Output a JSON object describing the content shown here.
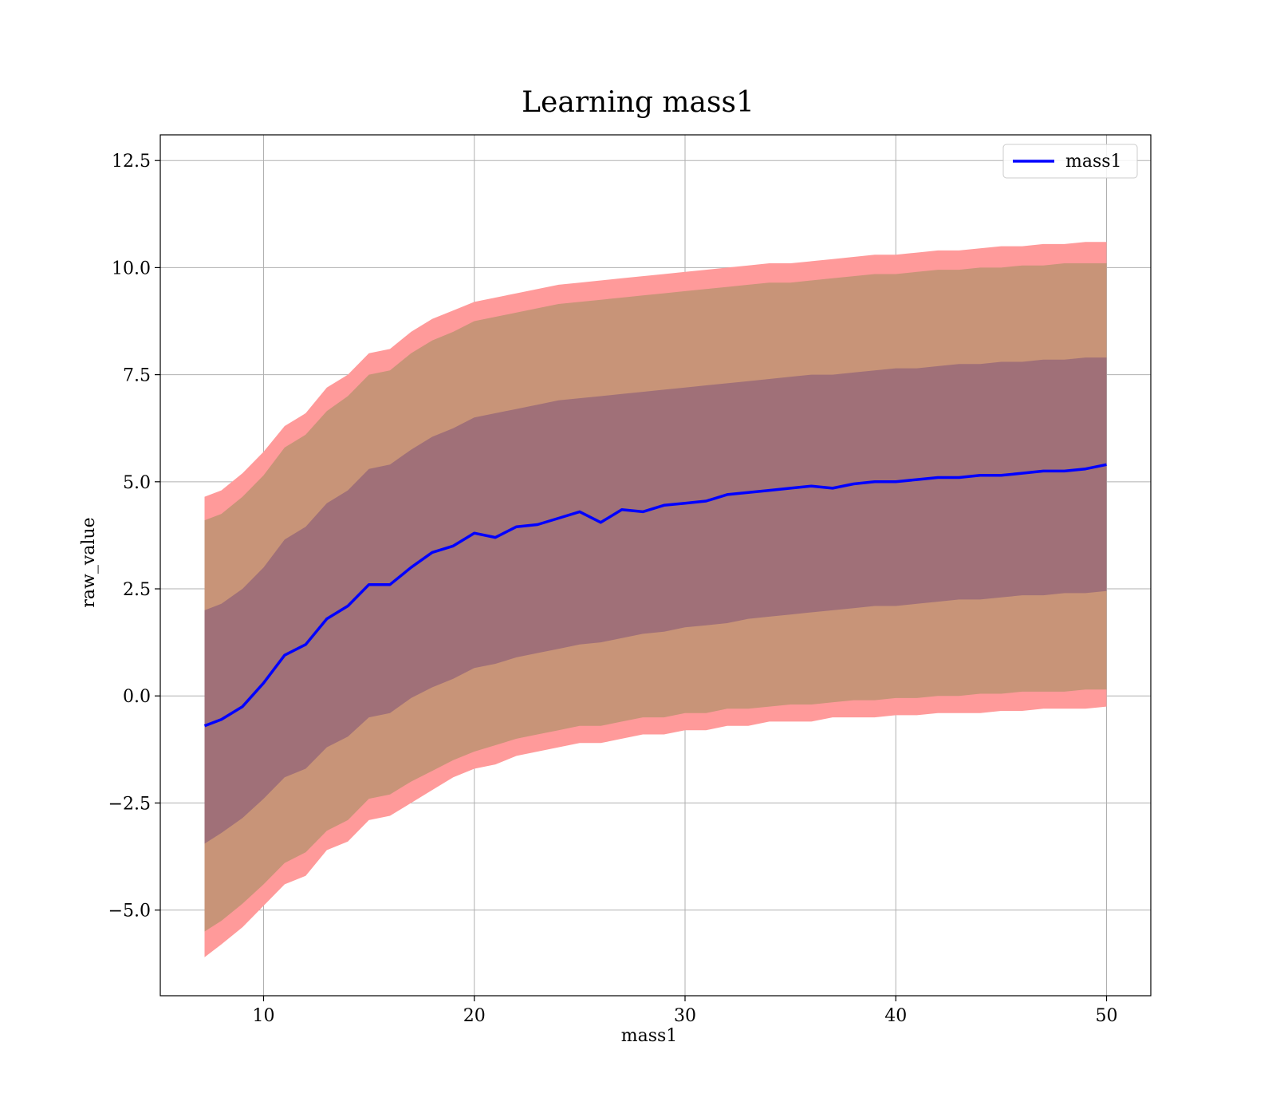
{
  "chart_data": {
    "type": "line",
    "title": "Learning mass1",
    "xlabel": "mass1",
    "ylabel": "raw_value",
    "xlim": [
      5.1,
      52.1
    ],
    "ylim": [
      -7.0,
      13.1
    ],
    "xticks": [
      10,
      20,
      30,
      40,
      50
    ],
    "xtick_labels": [
      "10",
      "20",
      "30",
      "40",
      "50"
    ],
    "yticks": [
      -5.0,
      -2.5,
      0.0,
      2.5,
      5.0,
      7.5,
      10.0,
      12.5
    ],
    "ytick_labels": [
      "−5.0",
      "−2.5",
      "0.0",
      "2.5",
      "5.0",
      "7.5",
      "10.0",
      "12.5"
    ],
    "grid": true,
    "legend_position": "top-right",
    "colors": {
      "line": "#0000ff",
      "band_outer": "#ff9a9a",
      "band_mid": "#c89478",
      "band_inner": "#a07078",
      "grid": "#b0b0b0",
      "axes": "#000000"
    },
    "series": [
      {
        "name": "mass1",
        "x": [
          7.2,
          8.0,
          9.0,
          10.0,
          11.0,
          12.0,
          13.0,
          14.0,
          15.0,
          16.0,
          17.0,
          18.0,
          19.0,
          20.0,
          21.0,
          22.0,
          23.0,
          24.0,
          25.0,
          26.0,
          27.0,
          28.0,
          29.0,
          30.0,
          31.0,
          32.0,
          33.0,
          34.0,
          35.0,
          36.0,
          37.0,
          38.0,
          39.0,
          40.0,
          41.0,
          42.0,
          43.0,
          44.0,
          45.0,
          46.0,
          47.0,
          48.0,
          49.0,
          50.0
        ],
        "y": [
          -0.7,
          -0.55,
          -0.25,
          0.3,
          0.95,
          1.2,
          1.8,
          2.1,
          2.6,
          2.6,
          3.0,
          3.35,
          3.5,
          3.8,
          3.7,
          3.95,
          4.0,
          4.15,
          4.3,
          4.05,
          4.35,
          4.3,
          4.45,
          4.5,
          4.55,
          4.7,
          4.75,
          4.8,
          4.85,
          4.9,
          4.85,
          4.95,
          5.0,
          5.0,
          5.05,
          5.1,
          5.1,
          5.15,
          5.15,
          5.2,
          5.25,
          5.25,
          5.3,
          5.4
        ],
        "band_outer_low": [
          -6.1,
          -5.8,
          -5.4,
          -4.9,
          -4.4,
          -4.2,
          -3.6,
          -3.4,
          -2.9,
          -2.8,
          -2.5,
          -2.2,
          -1.9,
          -1.7,
          -1.6,
          -1.4,
          -1.3,
          -1.2,
          -1.1,
          -1.1,
          -1.0,
          -0.9,
          -0.9,
          -0.8,
          -0.8,
          -0.7,
          -0.7,
          -0.6,
          -0.6,
          -0.6,
          -0.5,
          -0.5,
          -0.5,
          -0.45,
          -0.45,
          -0.4,
          -0.4,
          -0.4,
          -0.35,
          -0.35,
          -0.3,
          -0.3,
          -0.3,
          -0.25
        ],
        "band_outer_high": [
          4.65,
          4.8,
          5.2,
          5.7,
          6.3,
          6.6,
          7.2,
          7.5,
          8.0,
          8.1,
          8.5,
          8.8,
          9.0,
          9.2,
          9.3,
          9.4,
          9.5,
          9.6,
          9.65,
          9.7,
          9.75,
          9.8,
          9.85,
          9.9,
          9.95,
          10.0,
          10.05,
          10.1,
          10.1,
          10.15,
          10.2,
          10.25,
          10.3,
          10.3,
          10.35,
          10.4,
          10.4,
          10.45,
          10.5,
          10.5,
          10.55,
          10.55,
          10.6,
          10.6
        ],
        "band_mid_low": [
          -5.5,
          -5.25,
          -4.85,
          -4.4,
          -3.9,
          -3.65,
          -3.15,
          -2.9,
          -2.4,
          -2.3,
          -2.0,
          -1.75,
          -1.5,
          -1.3,
          -1.15,
          -1.0,
          -0.9,
          -0.8,
          -0.7,
          -0.7,
          -0.6,
          -0.5,
          -0.5,
          -0.4,
          -0.4,
          -0.3,
          -0.3,
          -0.25,
          -0.2,
          -0.2,
          -0.15,
          -0.1,
          -0.1,
          -0.05,
          -0.05,
          0.0,
          0.0,
          0.05,
          0.05,
          0.1,
          0.1,
          0.1,
          0.15,
          0.15
        ],
        "band_mid_high": [
          4.1,
          4.25,
          4.65,
          5.15,
          5.8,
          6.1,
          6.65,
          7.0,
          7.5,
          7.6,
          8.0,
          8.3,
          8.5,
          8.75,
          8.85,
          8.95,
          9.05,
          9.15,
          9.2,
          9.25,
          9.3,
          9.35,
          9.4,
          9.45,
          9.5,
          9.55,
          9.6,
          9.65,
          9.65,
          9.7,
          9.75,
          9.8,
          9.85,
          9.85,
          9.9,
          9.95,
          9.95,
          10.0,
          10.0,
          10.05,
          10.05,
          10.1,
          10.1,
          10.1
        ],
        "band_inner_low": [
          -3.45,
          -3.2,
          -2.85,
          -2.4,
          -1.9,
          -1.7,
          -1.2,
          -0.95,
          -0.5,
          -0.4,
          -0.05,
          0.2,
          0.4,
          0.65,
          0.75,
          0.9,
          1.0,
          1.1,
          1.2,
          1.25,
          1.35,
          1.45,
          1.5,
          1.6,
          1.65,
          1.7,
          1.8,
          1.85,
          1.9,
          1.95,
          2.0,
          2.05,
          2.1,
          2.1,
          2.15,
          2.2,
          2.25,
          2.25,
          2.3,
          2.35,
          2.35,
          2.4,
          2.4,
          2.45
        ],
        "band_inner_high": [
          2.0,
          2.15,
          2.5,
          3.0,
          3.65,
          3.95,
          4.5,
          4.8,
          5.3,
          5.4,
          5.75,
          6.05,
          6.25,
          6.5,
          6.6,
          6.7,
          6.8,
          6.9,
          6.95,
          7.0,
          7.05,
          7.1,
          7.15,
          7.2,
          7.25,
          7.3,
          7.35,
          7.4,
          7.45,
          7.5,
          7.5,
          7.55,
          7.6,
          7.65,
          7.65,
          7.7,
          7.75,
          7.75,
          7.8,
          7.8,
          7.85,
          7.85,
          7.9,
          7.9
        ]
      }
    ]
  }
}
